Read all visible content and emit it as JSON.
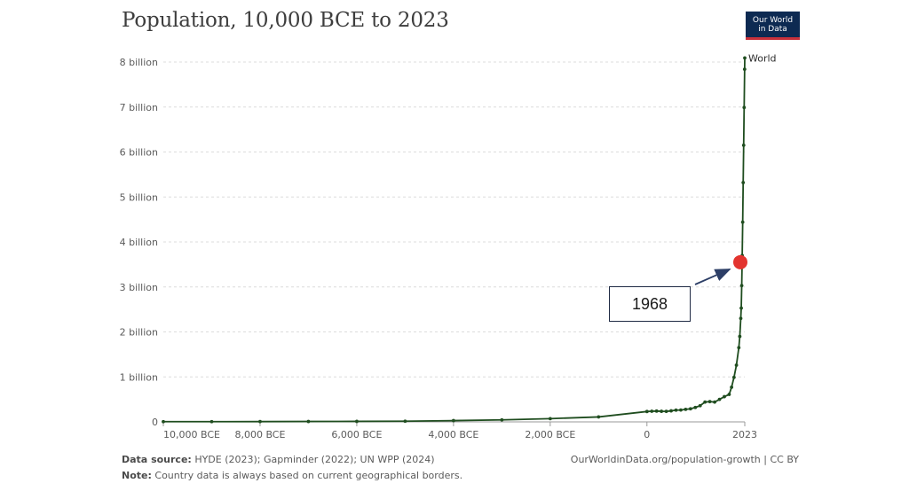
{
  "title": "Population, 10,000 BCE to 2023",
  "logo": {
    "line1": "Our World",
    "line2": "in Data"
  },
  "colors": {
    "series": "#1f4d1f",
    "highlight": "#e3342f",
    "arrow": "#2c3e66",
    "logo_bg": "#0d2a52",
    "logo_accent": "#c8313b"
  },
  "annotation": {
    "label": "1968",
    "year": 1968,
    "value": 3.55
  },
  "footer": {
    "source_label": "Data source:",
    "source_text": "HYDE (2023); Gapminder (2022); UN WPP (2024)",
    "note_label": "Note:",
    "note_text": "Country data is always based on current geographical borders.",
    "url": "OurWorldinData.org/population-growth | CC BY"
  },
  "chart_data": {
    "type": "line",
    "title": "Population, 10,000 BCE to 2023",
    "xlabel": "",
    "ylabel": "",
    "xlim": [
      -10000,
      2023
    ],
    "ylim": [
      0,
      8
    ],
    "y_unit": "billion",
    "grid": true,
    "y_ticks": [
      {
        "value": 0,
        "label": "0"
      },
      {
        "value": 1,
        "label": "1 billion"
      },
      {
        "value": 2,
        "label": "2 billion"
      },
      {
        "value": 3,
        "label": "3 billion"
      },
      {
        "value": 4,
        "label": "4 billion"
      },
      {
        "value": 5,
        "label": "5 billion"
      },
      {
        "value": 6,
        "label": "6 billion"
      },
      {
        "value": 7,
        "label": "7 billion"
      },
      {
        "value": 8,
        "label": "8 billion"
      }
    ],
    "x_ticks": [
      {
        "value": -10000,
        "label": "10,000 BCE"
      },
      {
        "value": -8000,
        "label": "8,000 BCE"
      },
      {
        "value": -6000,
        "label": "6,000 BCE"
      },
      {
        "value": -4000,
        "label": "4,000 BCE"
      },
      {
        "value": -2000,
        "label": "2,000 BCE"
      },
      {
        "value": 0,
        "label": "0"
      },
      {
        "value": 2023,
        "label": "2023"
      }
    ],
    "series": [
      {
        "name": "World",
        "x": [
          -10000,
          -9000,
          -8000,
          -7000,
          -6000,
          -5000,
          -4000,
          -3000,
          -2000,
          -1000,
          0,
          100,
          200,
          300,
          400,
          500,
          600,
          700,
          800,
          900,
          1000,
          1100,
          1200,
          1300,
          1400,
          1500,
          1600,
          1700,
          1750,
          1800,
          1850,
          1900,
          1920,
          1940,
          1950,
          1960,
          1968,
          1970,
          1980,
          1990,
          2000,
          2010,
          2020,
          2023
        ],
        "values": [
          0.0044,
          0.005,
          0.0063,
          0.0082,
          0.011,
          0.015,
          0.028,
          0.045,
          0.072,
          0.11,
          0.23,
          0.237,
          0.24,
          0.235,
          0.233,
          0.245,
          0.261,
          0.264,
          0.279,
          0.29,
          0.32,
          0.36,
          0.44,
          0.45,
          0.44,
          0.5,
          0.56,
          0.61,
          0.77,
          0.99,
          1.26,
          1.65,
          1.9,
          2.3,
          2.53,
          3.03,
          3.55,
          3.7,
          4.44,
          5.32,
          6.15,
          6.99,
          7.84,
          8.09
        ]
      }
    ]
  }
}
